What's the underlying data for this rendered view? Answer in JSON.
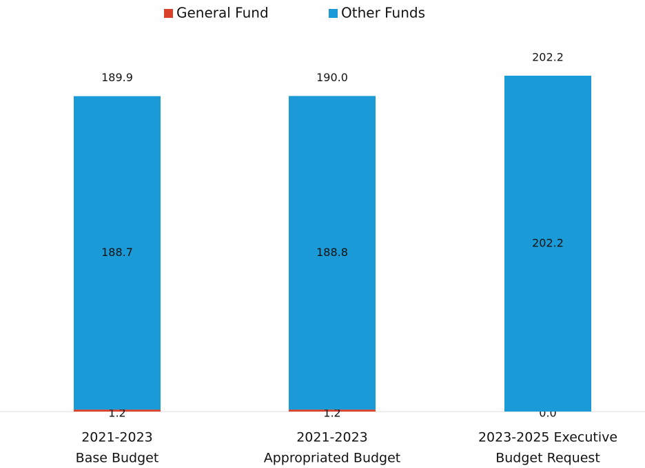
{
  "chart_data": {
    "type": "stacked_bar",
    "categories": [
      [
        "2021-2023",
        "Base Budget"
      ],
      [
        "2021-2023",
        "Appropriated Budget"
      ],
      [
        "2023-2025 Executive",
        "Budget Request"
      ]
    ],
    "series": [
      {
        "name": "General Fund",
        "color": "#d9412a",
        "values": [
          1.2,
          1.2,
          0.0
        ],
        "value_labels": [
          "1.2",
          "1.2",
          "0.0"
        ]
      },
      {
        "name": "Other Funds",
        "color": "#1a9ad6",
        "values": [
          188.7,
          188.8,
          202.2
        ]
      }
    ],
    "totals": [
      189.9,
      190.0,
      202.2
    ],
    "total_labels": [
      "189.9",
      "190.0",
      "202.2"
    ],
    "ylim": [
      0,
      202.2
    ],
    "legend": "top"
  }
}
